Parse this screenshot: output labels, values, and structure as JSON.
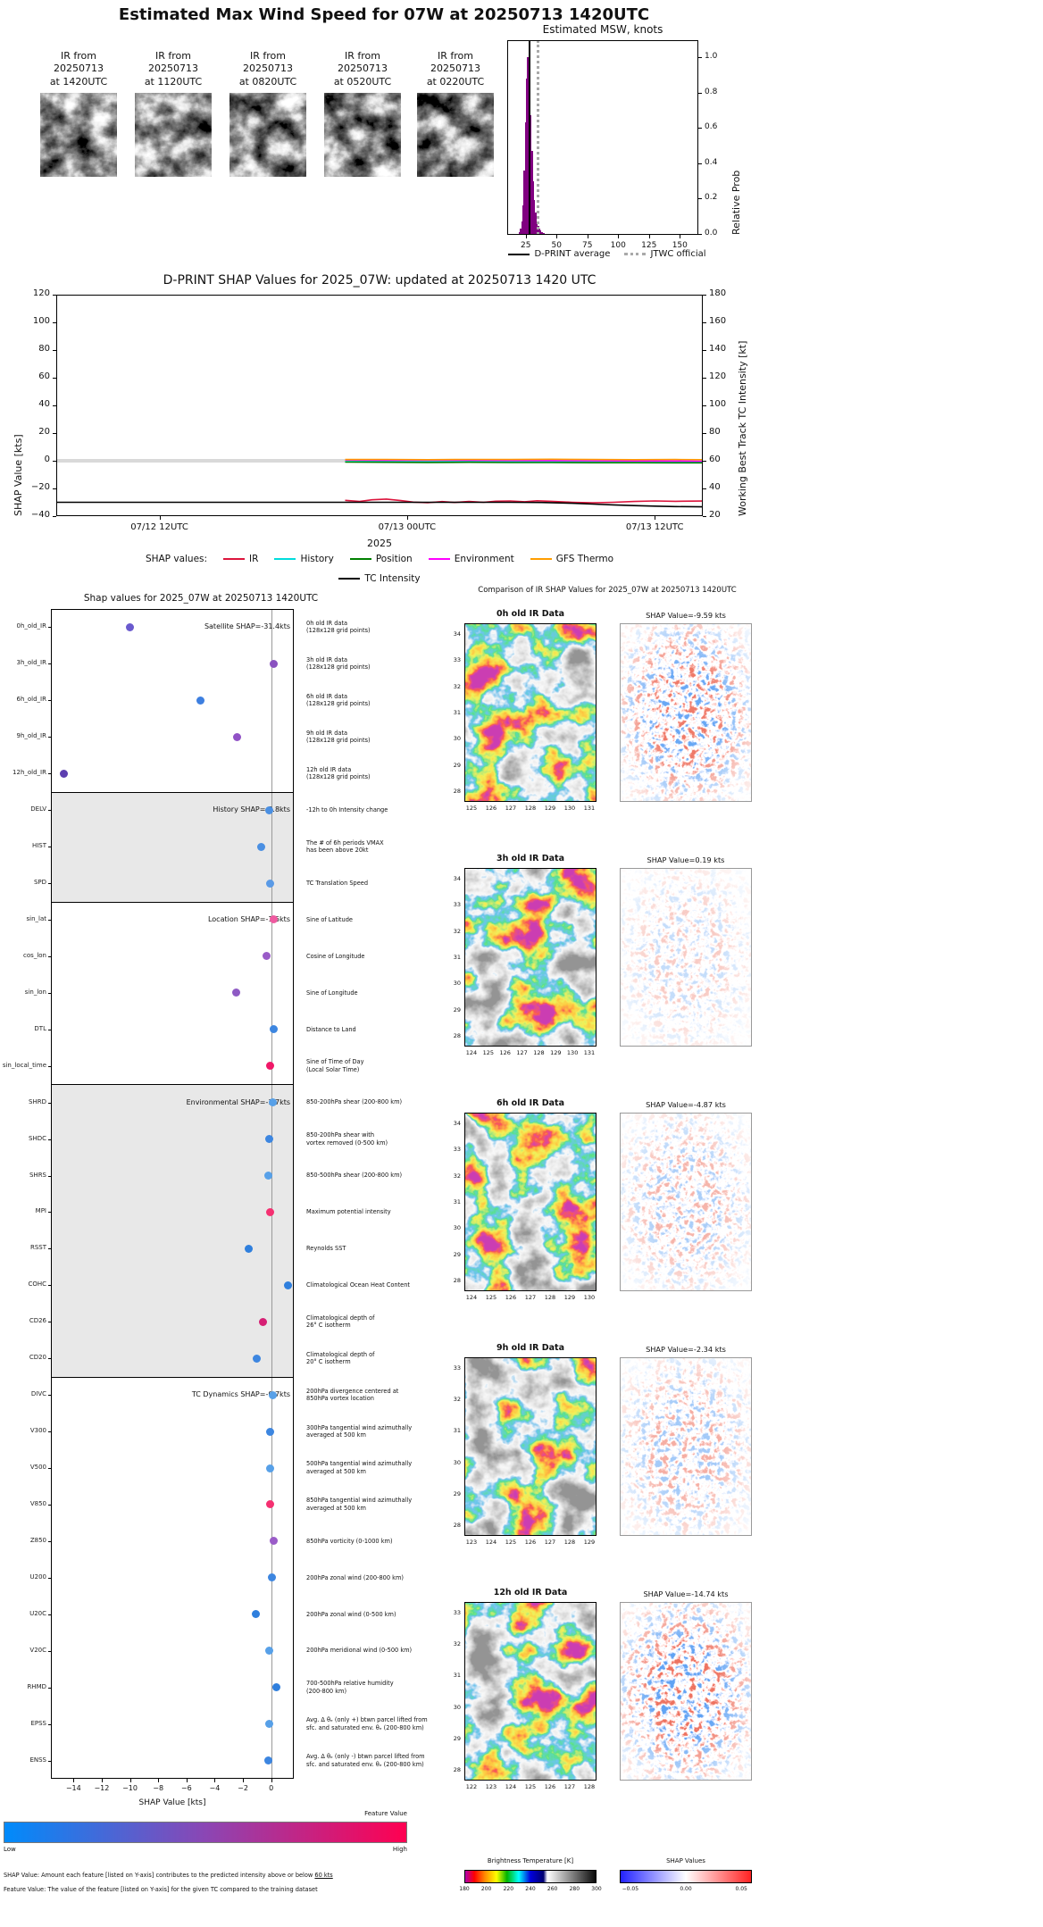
{
  "colors": {
    "hist_bar": "#800080",
    "dprint_avg_line": "#000000",
    "jtwc_line": "#a9a9a9",
    "zero_band": "#d9d9d9",
    "shading": "#e8e8e8",
    "feat_low": "#008bfb",
    "feat_mid": "#8b46b4",
    "feat_high": "#ff0051"
  },
  "top": {
    "title": "Estimated Max Wind Speed for 07W at 20250713 1420UTC",
    "thumbnails": [
      {
        "label": "IR from\n20250713\nat 1420UTC"
      },
      {
        "label": "IR from\n20250713\nat 1120UTC"
      },
      {
        "label": "IR from\n20250713\nat 0820UTC"
      },
      {
        "label": "IR from\n20250713\nat 0520UTC"
      },
      {
        "label": "IR from\n20250713\nat 0220UTC"
      }
    ]
  },
  "chart_data": [
    {
      "id": "msw_histogram",
      "type": "bar",
      "title": "Estimated MSW, knots",
      "ylabel": "Relative Prob",
      "xlim": [
        10,
        165
      ],
      "ylim": [
        0,
        1.05
      ],
      "xticks": [
        25,
        50,
        75,
        100,
        125,
        150
      ],
      "yticks": [
        0.0,
        0.2,
        0.4,
        0.6,
        0.8,
        1.0
      ],
      "bar_color": "#800080",
      "bars": [
        {
          "x": 20,
          "h": 0.01
        },
        {
          "x": 21,
          "h": 0.03
        },
        {
          "x": 22,
          "h": 0.07
        },
        {
          "x": 23,
          "h": 0.16
        },
        {
          "x": 24,
          "h": 0.36
        },
        {
          "x": 25,
          "h": 0.63
        },
        {
          "x": 26,
          "h": 0.88
        },
        {
          "x": 27,
          "h": 1.0
        },
        {
          "x": 28,
          "h": 0.9
        },
        {
          "x": 29,
          "h": 0.67
        },
        {
          "x": 30,
          "h": 0.47
        },
        {
          "x": 31,
          "h": 0.3
        },
        {
          "x": 32,
          "h": 0.19
        },
        {
          "x": 33,
          "h": 0.12
        },
        {
          "x": 34,
          "h": 0.07
        },
        {
          "x": 35,
          "h": 0.045
        },
        {
          "x": 36,
          "h": 0.03
        },
        {
          "x": 37,
          "h": 0.018
        },
        {
          "x": 38,
          "h": 0.01
        },
        {
          "x": 39,
          "h": 0.006
        },
        {
          "x": 40,
          "h": 0.004
        }
      ],
      "dprint_average_x": 27.5,
      "jtwc_official_x": 35,
      "legend": [
        {
          "label": "D-PRINT average",
          "style": "solid",
          "color": "#000000"
        },
        {
          "label": "JTWC official",
          "style": "dotted",
          "color": "#a9a9a9"
        }
      ]
    },
    {
      "id": "shap_timeseries",
      "type": "line",
      "title": "D-PRINT SHAP Values for 2025_07W: updated at 20250713 1420 UTC",
      "ylabel_left": "SHAP Value [kts]",
      "ylabel_right": "Working Best Track TC Intensity [kt]",
      "xlabel": "2025",
      "ylim_left": [
        -40,
        120
      ],
      "ylim_right": [
        20,
        180
      ],
      "yticks_left": [
        -40,
        -20,
        0,
        20,
        40,
        60,
        80,
        100,
        120
      ],
      "yticks_right": [
        20,
        40,
        60,
        80,
        100,
        120,
        140,
        160,
        180
      ],
      "t_range": [
        0,
        31.33
      ],
      "xticks": [
        {
          "t": 5,
          "label": "07/12 12UTC"
        },
        {
          "t": 17,
          "label": "07/13 00UTC"
        },
        {
          "t": 29,
          "label": "07/13 12UTC"
        }
      ],
      "legend_row1_label": "SHAP values:",
      "legend_row1": [
        "IR",
        "History",
        "Position",
        "Environment",
        "GFS Thermo"
      ],
      "legend_row2": [
        "TC Intensity"
      ],
      "series": [
        {
          "name": "IR",
          "color": "#dc143c",
          "points": [
            [
              14,
              -28.6
            ],
            [
              14.7,
              -29.4
            ],
            [
              15.3,
              -28.2
            ],
            [
              16,
              -27.7
            ],
            [
              16.7,
              -28.8
            ],
            [
              17.3,
              -29.9
            ],
            [
              18,
              -30.3
            ],
            [
              18.7,
              -29.5
            ],
            [
              19.3,
              -30.1
            ],
            [
              20,
              -29.4
            ],
            [
              20.7,
              -30.0
            ],
            [
              21.3,
              -29.2
            ],
            [
              22,
              -29.0
            ],
            [
              22.7,
              -29.6
            ],
            [
              23.3,
              -28.9
            ],
            [
              24,
              -29.3
            ],
            [
              25,
              -30.0
            ],
            [
              26,
              -30.4
            ],
            [
              27,
              -30.0
            ],
            [
              28,
              -29.4
            ],
            [
              29,
              -29.0
            ],
            [
              30,
              -29.3
            ],
            [
              31.33,
              -29.1
            ]
          ]
        },
        {
          "name": "History",
          "color": "#00dcdc",
          "points": [
            [
              14,
              -0.4
            ],
            [
              16,
              -0.5
            ],
            [
              18,
              -0.6
            ],
            [
              20,
              -0.5
            ],
            [
              22,
              -0.6
            ],
            [
              24,
              -0.7
            ],
            [
              26,
              -0.7
            ],
            [
              28,
              -0.8
            ],
            [
              30,
              -0.8
            ],
            [
              31.33,
              -0.8
            ]
          ]
        },
        {
          "name": "Position",
          "color": "#008000",
          "points": [
            [
              14,
              -1.0
            ],
            [
              16,
              -1.1
            ],
            [
              18,
              -1.2
            ],
            [
              20,
              -1.1
            ],
            [
              22,
              -1.3
            ],
            [
              24,
              -1.3
            ],
            [
              26,
              -1.4
            ],
            [
              28,
              -1.4
            ],
            [
              30,
              -1.5
            ],
            [
              31.33,
              -1.5
            ]
          ]
        },
        {
          "name": "Environment",
          "color": "#ff00ff",
          "points": [
            [
              14,
              0.5
            ],
            [
              16,
              0.4
            ],
            [
              18,
              0.3
            ],
            [
              20,
              0.4
            ],
            [
              22,
              0.2
            ],
            [
              24,
              0.1
            ],
            [
              26,
              0.0
            ],
            [
              28,
              -0.1
            ],
            [
              30,
              -0.2
            ],
            [
              31.33,
              -0.3
            ]
          ]
        },
        {
          "name": "GFS Thermo",
          "color": "#ff9d00",
          "points": [
            [
              14,
              0.9
            ],
            [
              16,
              1.0
            ],
            [
              18,
              0.8
            ],
            [
              20,
              1.0
            ],
            [
              22,
              0.9
            ],
            [
              24,
              1.1
            ],
            [
              26,
              0.9
            ],
            [
              28,
              0.8
            ],
            [
              30,
              0.9
            ],
            [
              31.33,
              0.8
            ]
          ]
        },
        {
          "name": "TC Intensity",
          "color": "#000000",
          "points": [
            [
              0,
              -30
            ],
            [
              22,
              -30
            ],
            [
              23.5,
              -30.1
            ],
            [
              25,
              -30.7
            ],
            [
              26,
              -31.3
            ],
            [
              27,
              -31.9
            ],
            [
              28,
              -32.4
            ],
            [
              29,
              -32.8
            ],
            [
              30,
              -33.1
            ],
            [
              31.33,
              -33.3
            ]
          ]
        }
      ]
    },
    {
      "id": "shap_dotplot",
      "type": "scatter",
      "title": "Shap values for 2025_07W at 20250713 1420UTC",
      "xlabel": "SHAP Value [kts]",
      "xlim": [
        -15.6,
        1.6
      ],
      "xticks": [
        -14,
        -12,
        -10,
        -8,
        -6,
        -4,
        -2,
        0
      ],
      "groups": [
        {
          "label": "Satellite SHAP=-31.4kts",
          "count": 5,
          "shaded": false
        },
        {
          "label": "History SHAP=-0.8kts",
          "count": 3,
          "shaded": true
        },
        {
          "label": "Location SHAP=-1.5kts",
          "count": 5,
          "shaded": false
        },
        {
          "label": "Environmental SHAP=-1.7kts",
          "count": 8,
          "shaded": true
        },
        {
          "label": "TC Dynamics SHAP=-0.7kts",
          "count": 11,
          "shaded": false
        }
      ],
      "features": [
        {
          "name": "0h_old_IR",
          "value": -10.0,
          "color": "#6a5ace",
          "desc": "0h old IR data\n(128x128 grid points)"
        },
        {
          "name": "3h_old_IR",
          "value": 0.15,
          "color": "#8a52c0",
          "desc": "3h old IR data\n(128x128 grid points)"
        },
        {
          "name": "6h_old_IR",
          "value": -5.0,
          "color": "#3d7fe0",
          "desc": "6h old IR data\n(128x128 grid points)"
        },
        {
          "name": "9h_old_IR",
          "value": -2.4,
          "color": "#9152c6",
          "desc": "9h old IR data\n(128x128 grid points)"
        },
        {
          "name": "12h_old_IR",
          "value": -14.7,
          "color": "#5d3fb0",
          "desc": "12h old IR data\n(128x128 grid points)"
        },
        {
          "name": "DELV",
          "value": -0.15,
          "color": "#4a8fe2",
          "desc": "-12h to 0h Intensity change"
        },
        {
          "name": "HIST",
          "value": -0.7,
          "color": "#4a8fe2",
          "desc": "The # of 6h periods VMAX\nhas been above 20kt"
        },
        {
          "name": "SPD",
          "value": -0.05,
          "color": "#5a9ae6",
          "desc": "TC Translation Speed"
        },
        {
          "name": "sin_lat",
          "value": 0.2,
          "color": "#ef5aa0",
          "desc": "Sine of Latitude"
        },
        {
          "name": "cos_lon",
          "value": -0.35,
          "color": "#9a5cc8",
          "desc": "Cosine of Longitude"
        },
        {
          "name": "sin_lon",
          "value": -2.45,
          "color": "#8e5ac4",
          "desc": "Sine of Longitude"
        },
        {
          "name": "DTL",
          "value": 0.15,
          "color": "#3d86e0",
          "desc": "Distance to Land"
        },
        {
          "name": "sin_local_time",
          "value": -0.05,
          "color": "#f01868",
          "desc": "Sine of Time of Day\n(Local Solar Time)"
        },
        {
          "name": "SHRD",
          "value": 0.1,
          "color": "#57a0e8",
          "desc": "850-200hPa shear (200-800 km)"
        },
        {
          "name": "SHDC",
          "value": -0.15,
          "color": "#3d86e0",
          "desc": "850-200hPa shear with\nvortex removed (0-500 km)"
        },
        {
          "name": "SHRS",
          "value": -0.2,
          "color": "#57a0e8",
          "desc": "850-500hPa shear (200-800 km)"
        },
        {
          "name": "MPI",
          "value": -0.05,
          "color": "#f53071",
          "desc": "Maximum potential intensity"
        },
        {
          "name": "RSST",
          "value": -1.6,
          "color": "#2f7fdd",
          "desc": "Reynolds SST"
        },
        {
          "name": "COHC",
          "value": 1.2,
          "color": "#2f7fdd",
          "desc": "Climatological Ocean Heat Content"
        },
        {
          "name": "CD26",
          "value": -0.6,
          "color": "#d61f74",
          "desc": "Climatological depth of\n26° C isotherm"
        },
        {
          "name": "CD20",
          "value": -1.0,
          "color": "#3d86e0",
          "desc": "Climatological depth of\n20° C isotherm"
        },
        {
          "name": "DIVC",
          "value": 0.1,
          "color": "#57a0e8",
          "desc": "200hPa divergence centered at\n850hPa vortex location"
        },
        {
          "name": "V300",
          "value": -0.05,
          "color": "#3d86e0",
          "desc": "300hPa tangential wind azimuthally\naveraged at 500 km"
        },
        {
          "name": "V500",
          "value": -0.1,
          "color": "#57a0e8",
          "desc": "500hPa tangential wind azimuthally\naveraged at 500 km"
        },
        {
          "name": "V850",
          "value": -0.05,
          "color": "#f53071",
          "desc": "850hPa tangential wind azimuthally\naveraged at 500 km"
        },
        {
          "name": "Z850",
          "value": 0.15,
          "color": "#9a5cc8",
          "desc": "850hPa vorticity (0-1000 km)"
        },
        {
          "name": "U200",
          "value": 0.05,
          "color": "#3d86e0",
          "desc": "200hPa zonal wind (200-800 km)"
        },
        {
          "name": "U20C",
          "value": -1.1,
          "color": "#2f7fdd",
          "desc": "200hPa zonal wind (0-500 km)"
        },
        {
          "name": "V20C",
          "value": -0.15,
          "color": "#57a0e8",
          "desc": "200hPa meridional wind (0-500 km)"
        },
        {
          "name": "RHMD",
          "value": 0.35,
          "color": "#2f7fdd",
          "desc": "700-500hPa relative humidity\n(200-800 km)"
        },
        {
          "name": "EPSS",
          "value": -0.15,
          "color": "#57a0e8",
          "desc": "Avg. Δ θₑ (only +) btwn parcel lifted from\nsfc. and saturated env. θₑ (200-800 km)"
        },
        {
          "name": "ENSS",
          "value": -0.2,
          "color": "#3d86e0",
          "desc": "Avg. Δ θₑ (only -) btwn parcel lifted from\nsfc. and saturated env. θₑ (200-800 km)"
        }
      ],
      "colorbar": {
        "label": "Feature Value",
        "low": "Low",
        "high": "High"
      },
      "footnote1_main": "SHAP Value: Amount each feature [listed on Y-axis] contributes to the predicted intensity above or below ",
      "footnote1_underlined": "60 kts",
      "footnote2": "Feature Value: The value of the feature [listed on Y-axis] for the given TC compared to the training dataset"
    },
    {
      "id": "ir_shap_comparison",
      "type": "heatmap",
      "title": "Comparison of IR SHAP Values for 2025_07W at 20250713 1420UTC",
      "rows": [
        {
          "title": "0h old IR Data",
          "shap_label": "SHAP Value=-9.59 kts",
          "lat_ticks": [
            34,
            33,
            32,
            31,
            30,
            29,
            28
          ],
          "lon_ticks": [
            125,
            126,
            127,
            128,
            129,
            130,
            131
          ]
        },
        {
          "title": "3h old IR Data",
          "shap_label": "SHAP Value=0.19 kts",
          "lat_ticks": [
            34,
            33,
            32,
            31,
            30,
            29,
            28
          ],
          "lon_ticks": [
            124,
            125,
            126,
            127,
            128,
            129,
            130,
            131
          ]
        },
        {
          "title": "6h old IR Data",
          "shap_label": "SHAP Value=-4.87 kts",
          "lat_ticks": [
            34,
            33,
            32,
            31,
            30,
            29,
            28
          ],
          "lon_ticks": [
            124,
            125,
            126,
            127,
            128,
            129,
            130
          ]
        },
        {
          "title": "9h old IR Data",
          "shap_label": "SHAP Value=-2.34 kts",
          "lat_ticks": [
            33,
            32,
            31,
            30,
            29,
            28
          ],
          "lon_ticks": [
            123,
            124,
            125,
            126,
            127,
            128,
            129
          ]
        },
        {
          "title": "12h old IR Data",
          "shap_label": "SHAP Value=-14.74 kts",
          "lat_ticks": [
            33,
            32,
            31,
            30,
            29,
            28
          ],
          "lon_ticks": [
            122,
            123,
            124,
            125,
            126,
            127,
            128
          ]
        }
      ],
      "bt_colorbar": {
        "title": "Brightness Temperature [K]",
        "ticks": [
          180,
          200,
          220,
          240,
          260,
          280,
          300
        ]
      },
      "shap_colorbar": {
        "title": "SHAP Values",
        "ticks": [
          "−0.05",
          "0.00",
          "0.05"
        ]
      }
    }
  ]
}
